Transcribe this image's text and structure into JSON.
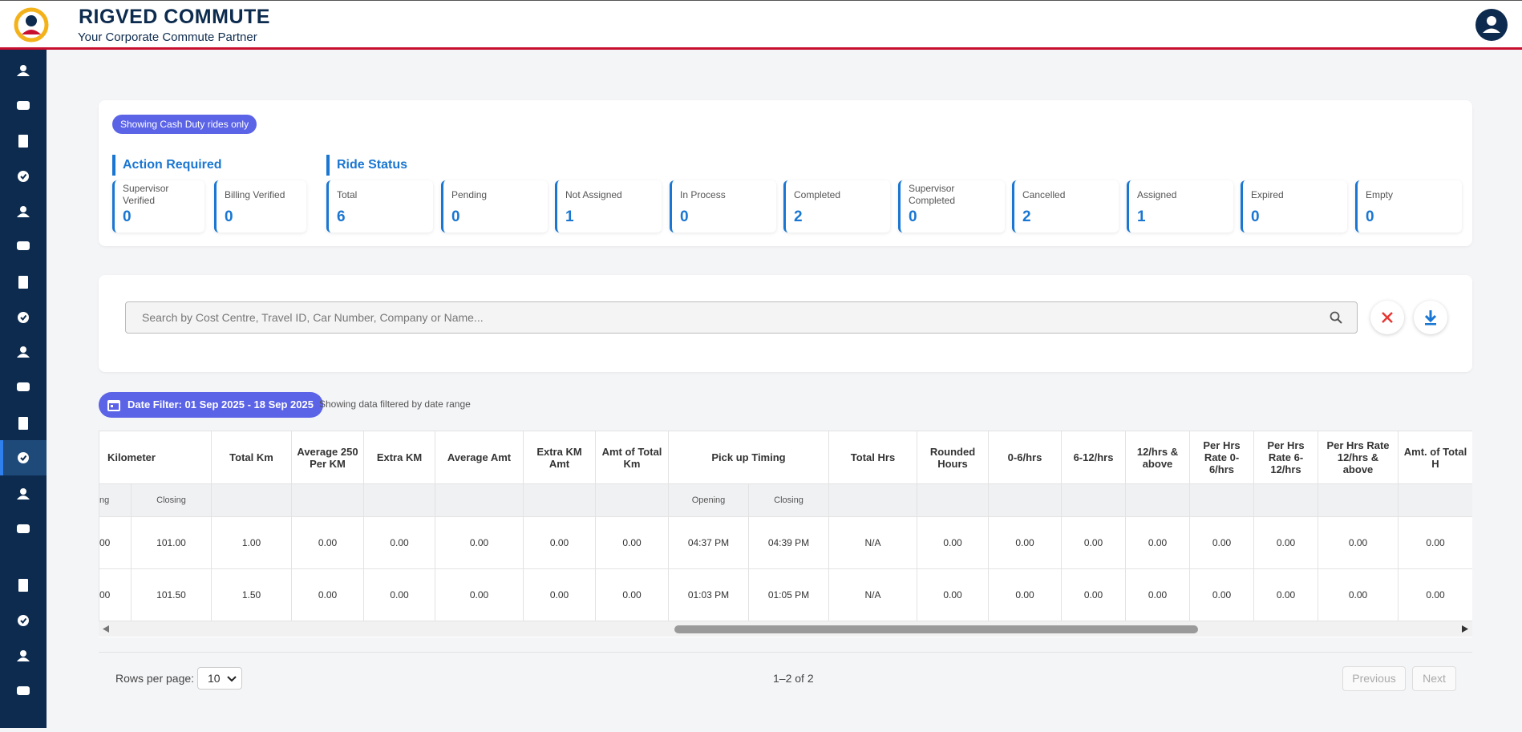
{
  "header": {
    "brand": "RIGVED COMMUTE",
    "tagline": "Your Corporate Commute Partner"
  },
  "summary": {
    "badge": "Showing Cash Duty rides only",
    "action_required": {
      "title": "Action Required",
      "cards": [
        {
          "label": "Supervisor Verified",
          "value": "0"
        },
        {
          "label": "Billing Verified",
          "value": "0"
        }
      ]
    },
    "ride_status": {
      "title": "Ride Status",
      "cards": [
        {
          "label": "Total",
          "value": "6"
        },
        {
          "label": "Pending",
          "value": "0"
        },
        {
          "label": "Not Assigned",
          "value": "1"
        },
        {
          "label": "In Process",
          "value": "0"
        },
        {
          "label": "Completed",
          "value": "2"
        },
        {
          "label": "Supervisor Completed",
          "value": "0"
        },
        {
          "label": "Cancelled",
          "value": "2"
        },
        {
          "label": "Assigned",
          "value": "1"
        },
        {
          "label": "Expired",
          "value": "0"
        },
        {
          "label": "Empty",
          "value": "0"
        }
      ]
    }
  },
  "search": {
    "placeholder": "Search by Cost Centre, Travel ID, Car Number, Company or Name..."
  },
  "date_filter": {
    "label": "Date Filter: 01 Sep 2025 - 18 Sep 2025",
    "note": "Showing data filtered by date range"
  },
  "table": {
    "headers": [
      "Kilometer",
      "Total Km",
      "Average 250 Per KM",
      "Extra KM",
      "Average Amt",
      "Extra KM Amt",
      "Amt of Total Km",
      "Pick up Timing",
      "Total Hrs",
      "Rounded Hours",
      "0-6/hrs",
      "6-12/hrs",
      "12/hrs & above",
      "Per Hrs Rate 0-6/hrs",
      "Per Hrs Rate 6-12/hrs",
      "Per Hrs Rate 12/hrs & above",
      "Amt. of Total H"
    ],
    "kilometer_subheaders": [
      "ng",
      "Closing"
    ],
    "pickup_subheaders": [
      "Opening",
      "Closing"
    ],
    "rows": [
      [
        "00",
        "101.00",
        "1.00",
        "0.00",
        "0.00",
        "0.00",
        "0.00",
        "0.00",
        "04:37 PM",
        "04:39 PM",
        "N/A",
        "0.00",
        "0.00",
        "0.00",
        "0.00",
        "0.00",
        "0.00",
        "0.00",
        "0.00"
      ],
      [
        "00",
        "101.50",
        "1.50",
        "0.00",
        "0.00",
        "0.00",
        "0.00",
        "0.00",
        "01:03 PM",
        "01:05 PM",
        "N/A",
        "0.00",
        "0.00",
        "0.00",
        "0.00",
        "0.00",
        "0.00",
        "0.00",
        "0.00"
      ]
    ]
  },
  "pagination": {
    "rows_label": "Rows per page:",
    "rows_value": "10",
    "range": "1–2 of 2",
    "previous": "Previous",
    "next": "Next"
  }
}
